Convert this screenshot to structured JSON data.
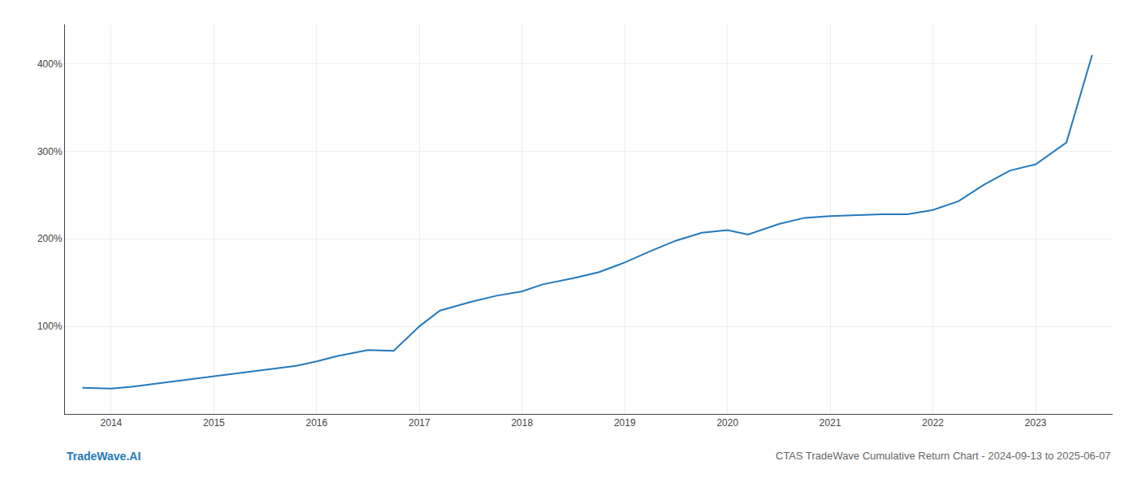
{
  "chart_data": {
    "type": "line",
    "title": "CTAS TradeWave Cumulative Return Chart - 2024-09-13 to 2025-06-07",
    "annotations": [
      "TradeWave.AI"
    ],
    "x": [
      2013.72,
      2013.9,
      2014.0,
      2014.2,
      2014.4,
      2014.6,
      2014.8,
      2015.0,
      2015.2,
      2015.4,
      2015.6,
      2015.8,
      2016.0,
      2016.2,
      2016.5,
      2016.75,
      2017.0,
      2017.2,
      2017.5,
      2017.75,
      2018.0,
      2018.2,
      2018.5,
      2018.75,
      2019.0,
      2019.25,
      2019.5,
      2019.75,
      2020.0,
      2020.2,
      2020.5,
      2020.75,
      2021.0,
      2021.25,
      2021.5,
      2021.75,
      2022.0,
      2022.25,
      2022.5,
      2022.75,
      2023.0,
      2023.3,
      2023.55
    ],
    "values": [
      30,
      29,
      29,
      31,
      34,
      37,
      40,
      43,
      46,
      49,
      52,
      55,
      60,
      66,
      73,
      72,
      100,
      118,
      128,
      135,
      140,
      148,
      155,
      162,
      173,
      186,
      198,
      207,
      210,
      205,
      217,
      224,
      226,
      227,
      228,
      228,
      233,
      243,
      262,
      278,
      285,
      310,
      410
    ],
    "color": "#2479bd",
    "xlim": [
      2013.55,
      2023.75
    ],
    "ylim": [
      0,
      445
    ],
    "xticks": [
      2014,
      2015,
      2016,
      2017,
      2018,
      2019,
      2020,
      2021,
      2022,
      2023
    ],
    "yticks": [
      {
        "value": 100,
        "label": "100%"
      },
      {
        "value": 200,
        "label": "200%"
      },
      {
        "value": 300,
        "label": "300%"
      },
      {
        "value": 400,
        "label": "400%"
      }
    ],
    "grid": true
  }
}
